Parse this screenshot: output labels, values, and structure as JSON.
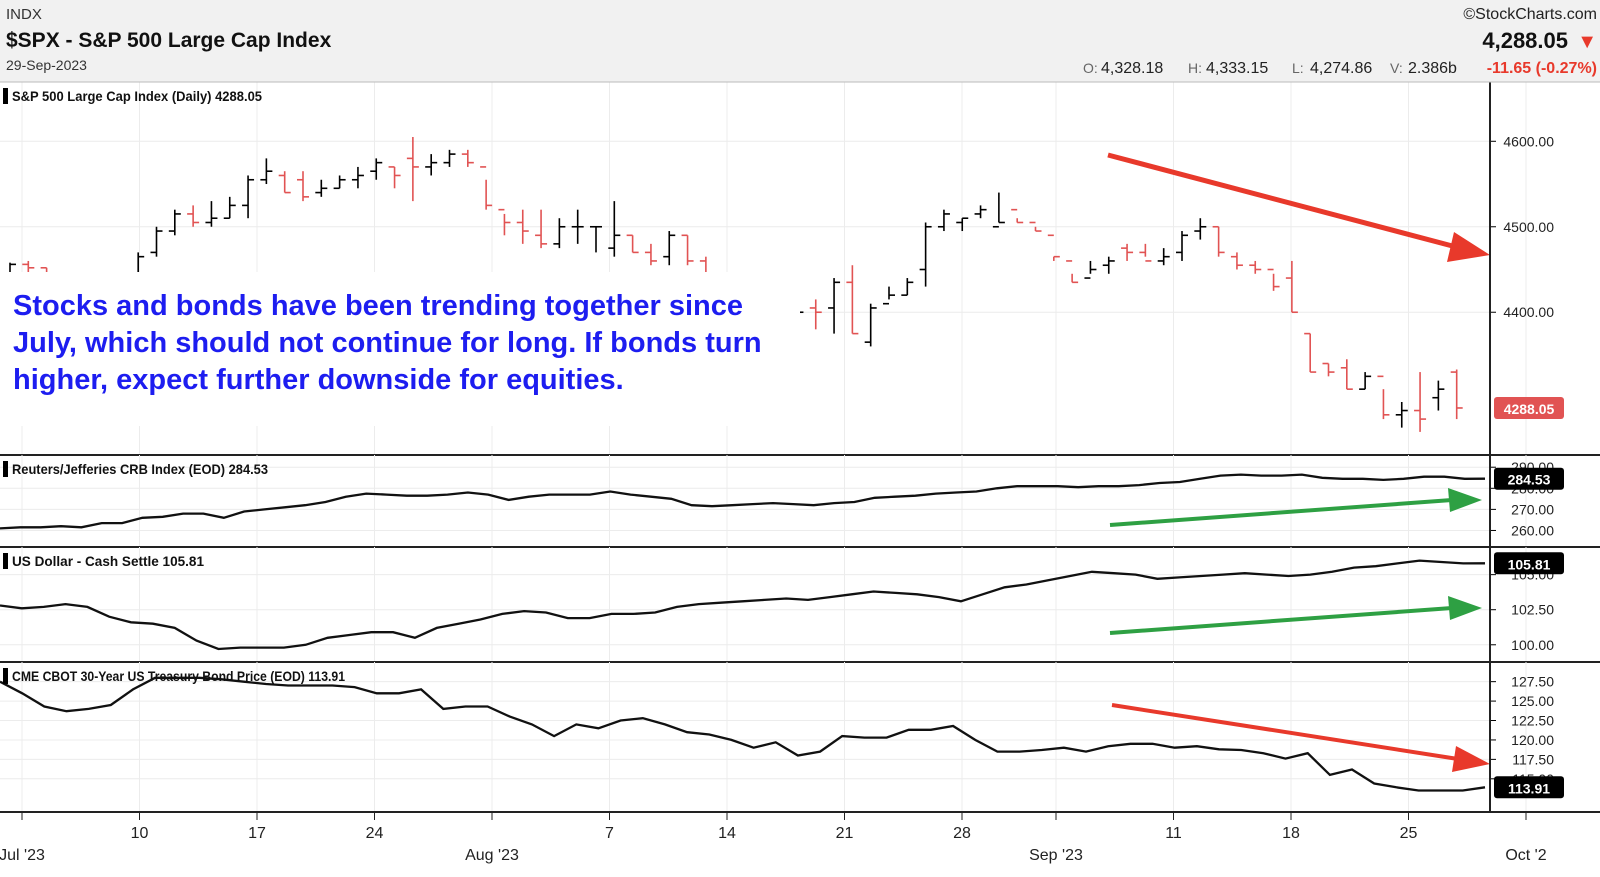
{
  "header": {
    "exchange": "INDX",
    "symbol_title": "$SPX - S&P 500 Large Cap Index",
    "date": "29-Sep-2023",
    "brand": "©StockCharts.com",
    "last_price": "4,288.05",
    "down_arrow": "▼",
    "ohlc": [
      {
        "key": "O:",
        "val": "4,328.18"
      },
      {
        "key": "H:",
        "val": "4,333.15"
      },
      {
        "key": "L:",
        "val": "4,274.86"
      },
      {
        "key": "V:",
        "val": "2.386b"
      }
    ],
    "change": "-11.65 (-0.27%)"
  },
  "annotation": "Stocks and bonds have been trending together since July, which should not continue for long. If bonds turn higher, expect further downside for equities.",
  "colors": {
    "up": "#000000",
    "down": "#e15353",
    "arrow_red": "#e8392b",
    "arrow_green": "#2ea043",
    "annotation": "#1d1df0",
    "bg_header": "#f1f1f1"
  },
  "x_axis": {
    "ticks": [
      {
        "day": 0,
        "label": "Jul '23"
      },
      {
        "day": 5,
        "label": "10"
      },
      {
        "day": 10,
        "label": "17"
      },
      {
        "day": 15,
        "label": "24"
      },
      {
        "day": 20,
        "label": "Aug '23"
      },
      {
        "day": 25,
        "label": "7"
      },
      {
        "day": 30,
        "label": "14"
      },
      {
        "day": 35,
        "label": "21"
      },
      {
        "day": 40,
        "label": "28"
      },
      {
        "day": 44,
        "label": "Sep '23"
      },
      {
        "day": 49,
        "label": "11"
      },
      {
        "day": 54,
        "label": "18"
      },
      {
        "day": 59,
        "label": "25"
      },
      {
        "day": 64,
        "label": "Oct '2"
      }
    ]
  },
  "chart_data": [
    {
      "type": "ohlc",
      "legend": "S&P 500 Large Cap Index (Daily) 4288.05",
      "last_label": "4288.05",
      "ylim": [
        4240,
        4660
      ],
      "yticks": [
        {
          "v": 4400,
          "label": "4400.00"
        },
        {
          "v": 4500,
          "label": "4500.00"
        },
        {
          "v": 4600,
          "label": "4600.00"
        }
      ],
      "bars": [
        [
          4440,
          4458,
          4432,
          4456
        ],
        [
          4456,
          4460,
          4440,
          4452
        ],
        [
          4452,
          4452,
          4430,
          4440
        ],
        [
          4440,
          4420,
          4400,
          4410
        ],
        [
          4410,
          4445,
          4400,
          4430
        ],
        [
          4430,
          4445,
          4405,
          4410
        ],
        [
          4410,
          4440,
          4405,
          4430
        ],
        [
          4425,
          4470,
          4420,
          4465
        ],
        [
          4470,
          4500,
          4465,
          4495
        ],
        [
          4495,
          4520,
          4490,
          4515
        ],
        [
          4515,
          4525,
          4500,
          4505
        ],
        [
          4505,
          4530,
          4500,
          4510
        ],
        [
          4510,
          4535,
          4510,
          4525
        ],
        [
          4525,
          4560,
          4510,
          4555
        ],
        [
          4555,
          4580,
          4550,
          4565
        ],
        [
          4560,
          4565,
          4540,
          4540
        ],
        [
          4555,
          4565,
          4530,
          4535
        ],
        [
          4540,
          4555,
          4535,
          4545
        ],
        [
          4545,
          4560,
          4545,
          4555
        ],
        [
          4555,
          4570,
          4545,
          4560
        ],
        [
          4565,
          4580,
          4555,
          4575
        ],
        [
          4570,
          4570,
          4545,
          4560
        ],
        [
          4580,
          4605,
          4530,
          4570
        ],
        [
          4570,
          4585,
          4560,
          4575
        ],
        [
          4575,
          4590,
          4570,
          4585
        ],
        [
          4585,
          4590,
          4570,
          4575
        ],
        [
          4570,
          4555,
          4520,
          4525
        ],
        [
          4520,
          4515,
          4490,
          4505
        ],
        [
          4505,
          4520,
          4480,
          4495
        ],
        [
          4490,
          4520,
          4475,
          4480
        ],
        [
          4480,
          4510,
          4475,
          4500
        ],
        [
          4500,
          4520,
          4480,
          4500
        ],
        [
          4500,
          4500,
          4470,
          4500
        ],
        [
          4475,
          4530,
          4465,
          4490
        ],
        [
          4490,
          4490,
          4470,
          4470
        ],
        [
          4470,
          4480,
          4455,
          4460
        ],
        [
          4465,
          4495,
          4455,
          4490
        ],
        [
          4490,
          4490,
          4455,
          4460
        ],
        [
          4460,
          4465,
          4440,
          4445
        ],
        [
          4445,
          4445,
          4415,
          4420
        ],
        [
          4420,
          4420,
          4375,
          4390
        ],
        [
          4390,
          4395,
          4360,
          4365
        ],
        [
          4380,
          4405,
          4375,
          4400
        ],
        [
          4385,
          4415,
          4375,
          4400
        ],
        [
          4405,
          4415,
          4380,
          4400
        ],
        [
          4405,
          4440,
          4375,
          4435
        ],
        [
          4435,
          4455,
          4375,
          4375
        ],
        [
          4365,
          4410,
          4360,
          4405
        ],
        [
          4410,
          4430,
          4415,
          4420
        ],
        [
          4420,
          4440,
          4420,
          4435
        ],
        [
          4450,
          4505,
          4430,
          4500
        ],
        [
          4500,
          4520,
          4495,
          4515
        ],
        [
          4505,
          4510,
          4495,
          4510
        ],
        [
          4515,
          4525,
          4510,
          4520
        ],
        [
          4500,
          4540,
          4505,
          4505
        ],
        [
          4520,
          4510,
          4505,
          4505
        ],
        [
          4505,
          4500,
          4495,
          4495
        ],
        [
          4490,
          4465,
          4460,
          4465
        ],
        [
          4460,
          4445,
          4435,
          4435
        ],
        [
          4440,
          4460,
          4445,
          4450
        ],
        [
          4455,
          4465,
          4445,
          4460
        ],
        [
          4475,
          4480,
          4460,
          4470
        ],
        [
          4470,
          4480,
          4465,
          4460
        ],
        [
          4460,
          4475,
          4455,
          4465
        ],
        [
          4470,
          4495,
          4460,
          4490
        ],
        [
          4495,
          4510,
          4485,
          4500
        ]
      ],
      "bars_extra": [
        [
          4500,
          4500,
          4465,
          4470
        ],
        [
          4465,
          4470,
          4450,
          4455
        ],
        [
          4455,
          4460,
          4445,
          4450
        ],
        [
          4450,
          4445,
          4425,
          4430
        ],
        [
          4440,
          4460,
          4400,
          4400
        ],
        [
          4375,
          4375,
          4330,
          4330
        ],
        [
          4340,
          4340,
          4325,
          4330
        ],
        [
          4335,
          4345,
          4310,
          4310
        ],
        [
          4310,
          4330,
          4310,
          4325
        ],
        [
          4325,
          4310,
          4275,
          4280
        ],
        [
          4280,
          4295,
          4265,
          4285
        ],
        [
          4285,
          4330,
          4260,
          4275
        ],
        [
          4300,
          4320,
          4285,
          4310
        ],
        [
          4330,
          4333,
          4275,
          4288
        ]
      ]
    },
    {
      "type": "line",
      "legend": "Reuters/Jefferies CRB Index (EOD) 284.53",
      "last_label": "284.53",
      "ylim": [
        255,
        292
      ],
      "yticks": [
        {
          "v": 260,
          "label": "260.00"
        },
        {
          "v": 270,
          "label": "270.00"
        },
        {
          "v": 280,
          "label": "280.00"
        },
        {
          "v": 290,
          "label": "290.00"
        }
      ],
      "y": [
        261,
        261.5,
        261.5,
        262,
        261.5,
        263.5,
        263.5,
        266,
        266.5,
        268,
        268,
        266,
        269,
        270,
        271,
        272,
        273.5,
        276,
        277.5,
        277,
        276.5,
        276.5,
        277,
        278,
        277,
        274.5,
        276,
        277,
        277,
        277,
        278.5,
        277,
        276,
        275,
        272,
        271.5,
        272,
        272.5,
        273,
        272.5,
        272,
        273,
        273.5,
        275.5,
        276,
        276.5,
        277.5,
        278,
        278.5,
        280,
        281,
        281,
        281,
        280.5,
        281,
        281,
        281.5,
        282.5,
        283,
        284.5,
        286,
        286.5,
        286,
        286,
        286.5,
        285,
        284.5,
        284.5,
        284,
        284.5,
        285.5,
        285.5,
        284.5,
        284.53
      ]
    },
    {
      "type": "line",
      "legend": "US Dollar - Cash Settle 105.81",
      "last_label": "105.81",
      "ylim": [
        99.2,
        106.4
      ],
      "yticks": [
        {
          "v": 100,
          "label": "100.00"
        },
        {
          "v": 102.5,
          "label": "102.50"
        },
        {
          "v": 105,
          "label": "105.00"
        }
      ],
      "y": [
        102.8,
        102.6,
        102.7,
        102.9,
        102.7,
        102,
        101.6,
        101.5,
        101.2,
        100.3,
        99.7,
        99.8,
        99.8,
        99.8,
        100.0,
        100.5,
        100.7,
        100.9,
        100.9,
        100.5,
        101.2,
        101.5,
        101.8,
        102.2,
        102.4,
        102.3,
        101.9,
        101.9,
        102.2,
        102.2,
        102.3,
        102.7,
        102.9,
        103,
        103.1,
        103.2,
        103.3,
        103.2,
        103.4,
        103.6,
        103.8,
        103.7,
        103.6,
        103.4,
        103.1,
        103.6,
        104.1,
        104.3,
        104.6,
        104.9,
        105.2,
        105.1,
        105.0,
        104.7,
        104.8,
        104.9,
        105,
        105.1,
        105.0,
        104.9,
        105.0,
        105.2,
        105.5,
        105.6,
        105.8,
        106.0,
        105.9,
        105.8,
        105.81
      ]
    },
    {
      "type": "line",
      "legend": "CME CBOT 30-Year US Treasury Bond Price (EOD) 113.91",
      "last_label": "113.91",
      "ylim": [
        111.5,
        129
      ],
      "yticks": [
        {
          "v": 115,
          "label": "115.00"
        },
        {
          "v": 117.5,
          "label": "117.50"
        },
        {
          "v": 120,
          "label": "120.00"
        },
        {
          "v": 122.5,
          "label": "122.50"
        },
        {
          "v": 125,
          "label": "125.00"
        },
        {
          "v": 127.5,
          "label": "127.50"
        }
      ],
      "y": [
        127.5,
        126,
        124.3,
        123.7,
        124,
        124.5,
        126.5,
        128,
        128,
        128,
        127.8,
        127.5,
        127.2,
        127,
        127,
        127,
        126.8,
        126,
        126,
        126.5,
        124,
        124.3,
        124.3,
        123,
        122,
        120.5,
        122,
        121.5,
        122.5,
        122.8,
        122,
        121,
        120.7,
        120,
        119,
        119.7,
        118,
        118.5,
        120.5,
        120.3,
        120.3,
        121.3,
        121.3,
        121.8,
        120,
        118.5,
        118.5,
        118.7,
        119,
        118.5,
        119.2,
        119.5,
        119.5,
        119.0,
        119.2,
        118.8,
        118.7,
        118.3,
        117.6,
        118.3,
        115.5,
        116.2,
        114.4,
        113.91,
        113.5,
        113.5,
        113.5,
        113.91
      ]
    }
  ]
}
